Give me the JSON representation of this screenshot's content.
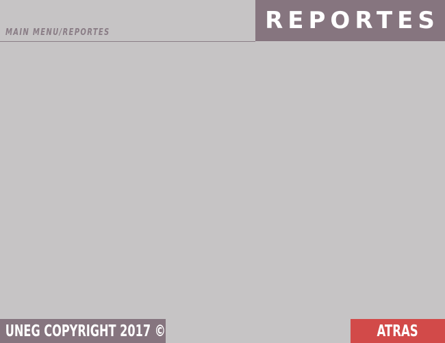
{
  "header": {
    "breadcrumb": "MAIN MENU/REPORTES",
    "title": "REPORTES"
  },
  "footer": {
    "copyright": "UNEG COPYRIGHT 2017 ©",
    "back_label": "ATRAS"
  },
  "colors": {
    "background": "#c6c4c5",
    "panel": "#86757f",
    "accent": "#d24a49",
    "text_light": "#ffffff"
  }
}
